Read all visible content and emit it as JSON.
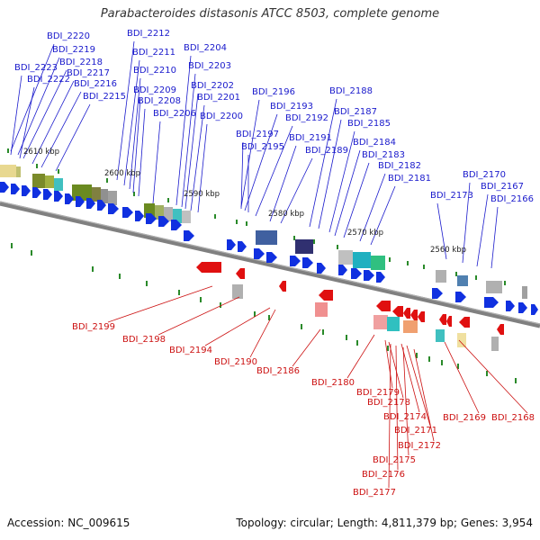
{
  "title": "Parabacteroides distasonis ATCC 8503, complete genome",
  "footer": {
    "accession": "Accession: NC_009615",
    "summary": "Topology: circular; Length: 4,811,379 bp; Genes: 3,954"
  },
  "colors": {
    "forward_gene": "#1030e0",
    "reverse_gene": "#e01010",
    "forward_label": "#1a1acc",
    "reverse_label": "#cc1111",
    "backbone": "#808080",
    "tick": "#2a8a2a"
  },
  "scale_ticks": [
    "2610 kbp",
    "2600 kbp",
    "2590 kbp",
    "2580 kbp",
    "2570 kbp",
    "2560 kbp"
  ],
  "forward_labels": [
    "BDI_2220",
    "BDI_2219",
    "BDI_2218",
    "BDI_2223",
    "BDI_2217",
    "BDI_2222",
    "BDI_2216",
    "BDI_2215",
    "BDI_2212",
    "BDI_2211",
    "BDI_2210",
    "BDI_2209",
    "BDI_2208",
    "BDI_2206",
    "BDI_2204",
    "BDI_2203",
    "BDI_2202",
    "BDI_2201",
    "BDI_2200",
    "BDI_2196",
    "BDI_2193",
    "BDI_2192",
    "BDI_2197",
    "BDI_2191",
    "BDI_2195",
    "BDI_2189",
    "BDI_2188",
    "BDI_2187",
    "BDI_2185",
    "BDI_2184",
    "BDI_2183",
    "BDI_2182",
    "BDI_2181",
    "BDI_2170",
    "BDI_2167",
    "BDI_2173",
    "BDI_2166"
  ],
  "reverse_labels": [
    "BDI_2199",
    "BDI_2198",
    "BDI_2194",
    "BDI_2190",
    "BDI_2186",
    "BDI_2180",
    "BDI_2179",
    "BDI_2178",
    "BDI_2174",
    "BDI_2169",
    "BDI_2168",
    "BDI_2171",
    "BDI_2172",
    "BDI_2175",
    "BDI_2176",
    "BDI_2177"
  ]
}
